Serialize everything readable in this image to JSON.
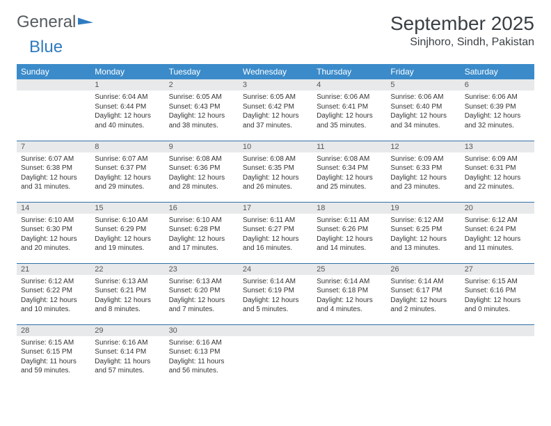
{
  "logo": {
    "text_general": "General",
    "text_blue": "Blue"
  },
  "header": {
    "month_title": "September 2025",
    "location": "Sinjhoro, Sindh, Pakistan"
  },
  "colors": {
    "header_bg": "#3b8bca",
    "header_text": "#ffffff",
    "daynum_bg": "#e8e9ea",
    "row_divider": "#2f6fa8",
    "body_text": "#333333",
    "logo_gray": "#555b60",
    "logo_blue": "#2f7bbf"
  },
  "weekdays": [
    "Sunday",
    "Monday",
    "Tuesday",
    "Wednesday",
    "Thursday",
    "Friday",
    "Saturday"
  ],
  "weeks": [
    [
      null,
      {
        "n": "1",
        "sr": "Sunrise: 6:04 AM",
        "ss": "Sunset: 6:44 PM",
        "dl": "Daylight: 12 hours and 40 minutes."
      },
      {
        "n": "2",
        "sr": "Sunrise: 6:05 AM",
        "ss": "Sunset: 6:43 PM",
        "dl": "Daylight: 12 hours and 38 minutes."
      },
      {
        "n": "3",
        "sr": "Sunrise: 6:05 AM",
        "ss": "Sunset: 6:42 PM",
        "dl": "Daylight: 12 hours and 37 minutes."
      },
      {
        "n": "4",
        "sr": "Sunrise: 6:06 AM",
        "ss": "Sunset: 6:41 PM",
        "dl": "Daylight: 12 hours and 35 minutes."
      },
      {
        "n": "5",
        "sr": "Sunrise: 6:06 AM",
        "ss": "Sunset: 6:40 PM",
        "dl": "Daylight: 12 hours and 34 minutes."
      },
      {
        "n": "6",
        "sr": "Sunrise: 6:06 AM",
        "ss": "Sunset: 6:39 PM",
        "dl": "Daylight: 12 hours and 32 minutes."
      }
    ],
    [
      {
        "n": "7",
        "sr": "Sunrise: 6:07 AM",
        "ss": "Sunset: 6:38 PM",
        "dl": "Daylight: 12 hours and 31 minutes."
      },
      {
        "n": "8",
        "sr": "Sunrise: 6:07 AM",
        "ss": "Sunset: 6:37 PM",
        "dl": "Daylight: 12 hours and 29 minutes."
      },
      {
        "n": "9",
        "sr": "Sunrise: 6:08 AM",
        "ss": "Sunset: 6:36 PM",
        "dl": "Daylight: 12 hours and 28 minutes."
      },
      {
        "n": "10",
        "sr": "Sunrise: 6:08 AM",
        "ss": "Sunset: 6:35 PM",
        "dl": "Daylight: 12 hours and 26 minutes."
      },
      {
        "n": "11",
        "sr": "Sunrise: 6:08 AM",
        "ss": "Sunset: 6:34 PM",
        "dl": "Daylight: 12 hours and 25 minutes."
      },
      {
        "n": "12",
        "sr": "Sunrise: 6:09 AM",
        "ss": "Sunset: 6:33 PM",
        "dl": "Daylight: 12 hours and 23 minutes."
      },
      {
        "n": "13",
        "sr": "Sunrise: 6:09 AM",
        "ss": "Sunset: 6:31 PM",
        "dl": "Daylight: 12 hours and 22 minutes."
      }
    ],
    [
      {
        "n": "14",
        "sr": "Sunrise: 6:10 AM",
        "ss": "Sunset: 6:30 PM",
        "dl": "Daylight: 12 hours and 20 minutes."
      },
      {
        "n": "15",
        "sr": "Sunrise: 6:10 AM",
        "ss": "Sunset: 6:29 PM",
        "dl": "Daylight: 12 hours and 19 minutes."
      },
      {
        "n": "16",
        "sr": "Sunrise: 6:10 AM",
        "ss": "Sunset: 6:28 PM",
        "dl": "Daylight: 12 hours and 17 minutes."
      },
      {
        "n": "17",
        "sr": "Sunrise: 6:11 AM",
        "ss": "Sunset: 6:27 PM",
        "dl": "Daylight: 12 hours and 16 minutes."
      },
      {
        "n": "18",
        "sr": "Sunrise: 6:11 AM",
        "ss": "Sunset: 6:26 PM",
        "dl": "Daylight: 12 hours and 14 minutes."
      },
      {
        "n": "19",
        "sr": "Sunrise: 6:12 AM",
        "ss": "Sunset: 6:25 PM",
        "dl": "Daylight: 12 hours and 13 minutes."
      },
      {
        "n": "20",
        "sr": "Sunrise: 6:12 AM",
        "ss": "Sunset: 6:24 PM",
        "dl": "Daylight: 12 hours and 11 minutes."
      }
    ],
    [
      {
        "n": "21",
        "sr": "Sunrise: 6:12 AM",
        "ss": "Sunset: 6:22 PM",
        "dl": "Daylight: 12 hours and 10 minutes."
      },
      {
        "n": "22",
        "sr": "Sunrise: 6:13 AM",
        "ss": "Sunset: 6:21 PM",
        "dl": "Daylight: 12 hours and 8 minutes."
      },
      {
        "n": "23",
        "sr": "Sunrise: 6:13 AM",
        "ss": "Sunset: 6:20 PM",
        "dl": "Daylight: 12 hours and 7 minutes."
      },
      {
        "n": "24",
        "sr": "Sunrise: 6:14 AM",
        "ss": "Sunset: 6:19 PM",
        "dl": "Daylight: 12 hours and 5 minutes."
      },
      {
        "n": "25",
        "sr": "Sunrise: 6:14 AM",
        "ss": "Sunset: 6:18 PM",
        "dl": "Daylight: 12 hours and 4 minutes."
      },
      {
        "n": "26",
        "sr": "Sunrise: 6:14 AM",
        "ss": "Sunset: 6:17 PM",
        "dl": "Daylight: 12 hours and 2 minutes."
      },
      {
        "n": "27",
        "sr": "Sunrise: 6:15 AM",
        "ss": "Sunset: 6:16 PM",
        "dl": "Daylight: 12 hours and 0 minutes."
      }
    ],
    [
      {
        "n": "28",
        "sr": "Sunrise: 6:15 AM",
        "ss": "Sunset: 6:15 PM",
        "dl": "Daylight: 11 hours and 59 minutes."
      },
      {
        "n": "29",
        "sr": "Sunrise: 6:16 AM",
        "ss": "Sunset: 6:14 PM",
        "dl": "Daylight: 11 hours and 57 minutes."
      },
      {
        "n": "30",
        "sr": "Sunrise: 6:16 AM",
        "ss": "Sunset: 6:13 PM",
        "dl": "Daylight: 11 hours and 56 minutes."
      },
      null,
      null,
      null,
      null
    ]
  ]
}
